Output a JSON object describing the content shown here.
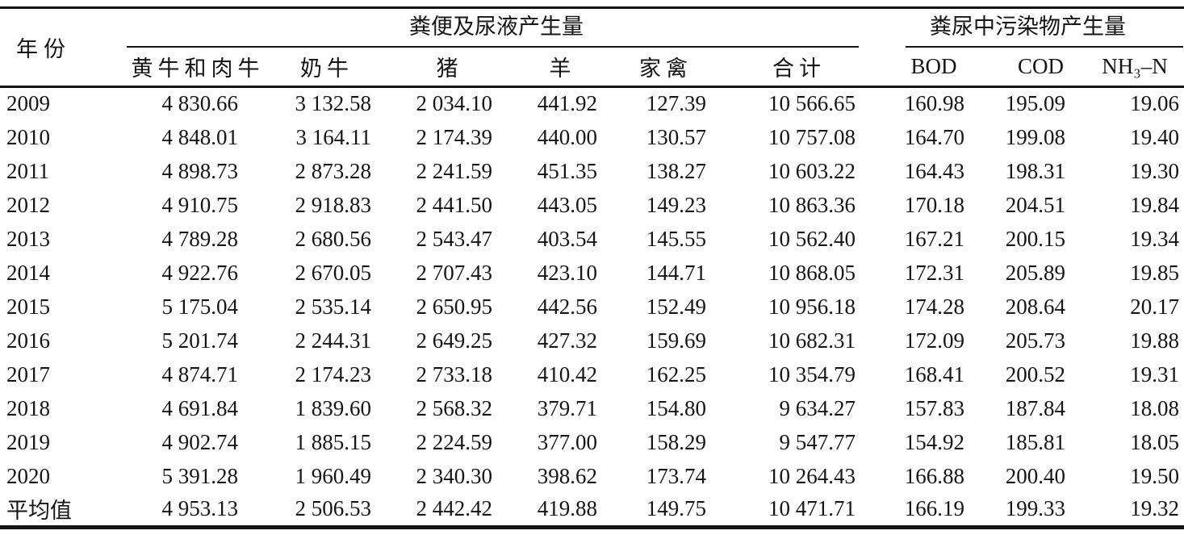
{
  "table": {
    "year_header": "年份",
    "groups": [
      {
        "label": "粪便及尿液产生量",
        "columns": [
          "黄牛和肉牛",
          "奶牛",
          "猪",
          "羊",
          "家禽",
          "合计"
        ]
      },
      {
        "label": "粪尿中污染物产生量",
        "columns": [
          "BOD",
          "COD",
          "NH₃–N"
        ]
      }
    ],
    "rows": [
      {
        "year": "2009",
        "values": [
          "4 830.66",
          "3 132.58",
          "2 034.10",
          "441.92",
          "127.39",
          "10 566.65",
          "160.98",
          "195.09",
          "19.06"
        ]
      },
      {
        "year": "2010",
        "values": [
          "4 848.01",
          "3 164.11",
          "2 174.39",
          "440.00",
          "130.57",
          "10 757.08",
          "164.70",
          "199.08",
          "19.40"
        ]
      },
      {
        "year": "2011",
        "values": [
          "4 898.73",
          "2 873.28",
          "2 241.59",
          "451.35",
          "138.27",
          "10 603.22",
          "164.43",
          "198.31",
          "19.30"
        ]
      },
      {
        "year": "2012",
        "values": [
          "4 910.75",
          "2 918.83",
          "2 441.50",
          "443.05",
          "149.23",
          "10 863.36",
          "170.18",
          "204.51",
          "19.84"
        ]
      },
      {
        "year": "2013",
        "values": [
          "4 789.28",
          "2 680.56",
          "2 543.47",
          "403.54",
          "145.55",
          "10 562.40",
          "167.21",
          "200.15",
          "19.34"
        ]
      },
      {
        "year": "2014",
        "values": [
          "4 922.76",
          "2 670.05",
          "2 707.43",
          "423.10",
          "144.71",
          "10 868.05",
          "172.31",
          "205.89",
          "19.85"
        ]
      },
      {
        "year": "2015",
        "values": [
          "5 175.04",
          "2 535.14",
          "2 650.95",
          "442.56",
          "152.49",
          "10 956.18",
          "174.28",
          "208.64",
          "20.17"
        ]
      },
      {
        "year": "2016",
        "values": [
          "5 201.74",
          "2 244.31",
          "2 649.25",
          "427.32",
          "159.69",
          "10 682.31",
          "172.09",
          "205.73",
          "19.88"
        ]
      },
      {
        "year": "2017",
        "values": [
          "4 874.71",
          "2 174.23",
          "2 733.18",
          "410.42",
          "162.25",
          "10 354.79",
          "168.41",
          "200.52",
          "19.31"
        ]
      },
      {
        "year": "2018",
        "values": [
          "4 691.84",
          "1 839.60",
          "2 568.32",
          "379.71",
          "154.80",
          "9 634.27",
          "157.83",
          "187.84",
          "18.08"
        ]
      },
      {
        "year": "2019",
        "values": [
          "4 902.74",
          "1 885.15",
          "2 224.59",
          "377.00",
          "158.29",
          "9 547.77",
          "154.92",
          "185.81",
          "18.05"
        ]
      },
      {
        "year": "2020",
        "values": [
          "5 391.28",
          "1 960.49",
          "2 340.30",
          "398.62",
          "173.74",
          "10 264.43",
          "166.88",
          "200.40",
          "19.50"
        ]
      },
      {
        "year": "平均值",
        "values": [
          "4 953.13",
          "2 506.53",
          "2 442.42",
          "419.88",
          "149.75",
          "10 471.71",
          "166.19",
          "199.33",
          "19.32"
        ]
      }
    ]
  }
}
